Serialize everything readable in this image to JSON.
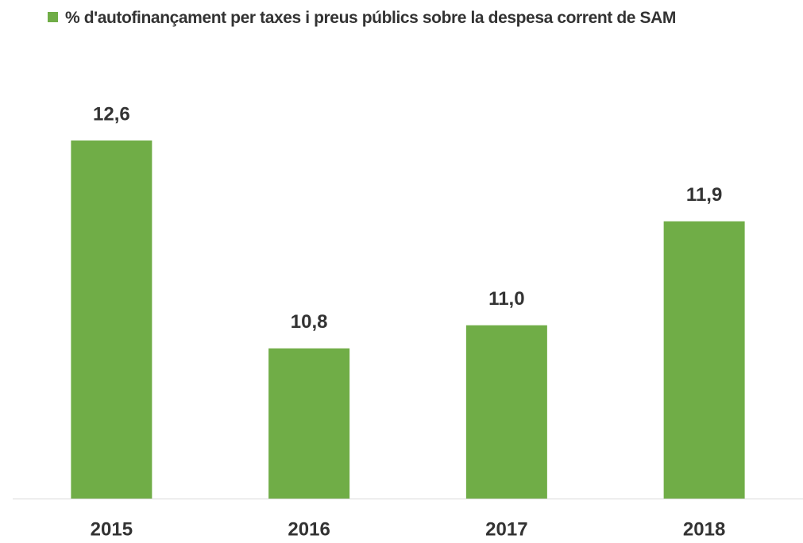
{
  "chart_data": {
    "type": "bar",
    "categories": [
      "2015",
      "2016",
      "2017",
      "2018"
    ],
    "series": [
      {
        "name": "% d'autofinançament per taxes i preus públics sobre la despesa corrent de SAM",
        "color": "#70ad47",
        "values": [
          12.6,
          10.8,
          11.0,
          11.9
        ],
        "value_labels": [
          "12,6",
          "10,8",
          "11,0",
          "11,9"
        ]
      }
    ],
    "ylim": [
      9.5,
      13.5
    ],
    "legend": "top"
  }
}
